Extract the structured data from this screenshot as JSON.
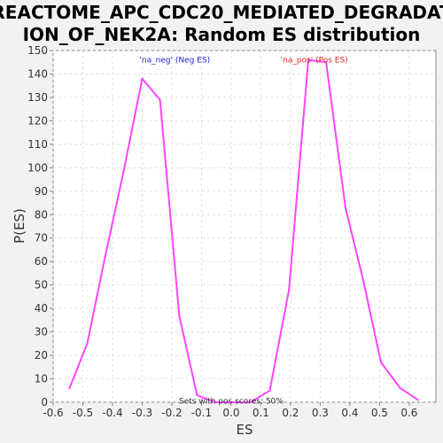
{
  "chart_data": {
    "type": "line",
    "title_lines": [
      "REACTOME_APC_CDC20_MEDIATED_DEGRADAT",
      "ION_OF_NEK2A: Random ES distribution"
    ],
    "xlabel": "ES",
    "ylabel": "P(ES)",
    "xlim": [
      -0.6,
      0.69
    ],
    "ylim": [
      0,
      150
    ],
    "xticks": [
      -0.6,
      -0.5,
      -0.4,
      -0.3,
      -0.2,
      -0.1,
      0.0,
      0.1,
      0.2,
      0.3,
      0.4,
      0.5,
      0.6
    ],
    "xtick_labels": [
      "-0.6",
      "-0.5",
      "-0.4",
      "-0.3",
      "-0.2",
      "-0.1",
      "0.0",
      "0.1",
      "0.2",
      "0.3",
      "0.4",
      "0.5",
      "0.6"
    ],
    "yticks": [
      0,
      10,
      20,
      30,
      40,
      50,
      60,
      70,
      80,
      90,
      100,
      110,
      120,
      130,
      140,
      150
    ],
    "ytick_labels": [
      "0",
      "10",
      "20",
      "30",
      "40",
      "50",
      "60",
      "70",
      "80",
      "90",
      "100",
      "110",
      "120",
      "130",
      "140",
      "150"
    ],
    "grid": true,
    "line_color": "#ff44ff",
    "series": [
      {
        "x": [
          -0.545,
          -0.485,
          -0.425,
          -0.365,
          -0.3,
          -0.24,
          -0.175,
          -0.115,
          -0.055,
          0.005,
          0.065,
          0.13,
          0.195,
          0.26,
          0.32,
          0.385,
          0.445,
          0.505,
          0.57,
          0.63
        ],
        "y": [
          6,
          25,
          62,
          97,
          138,
          129,
          37,
          3,
          0,
          0,
          0,
          5,
          48,
          146,
          145,
          83,
          52,
          17,
          6,
          1
        ]
      }
    ],
    "annotations": [
      {
        "text": "'na_neg' (Neg ES)",
        "color": "#2222cc",
        "x": -0.19,
        "y": 146
      },
      {
        "text": "'na_pos' (Pos ES)",
        "color": "#dd2222",
        "x": 0.28,
        "y": 146
      },
      {
        "text": "Sets with pos scores: 50%",
        "color": "#333333",
        "x": 0.0,
        "y": 0.6
      }
    ]
  }
}
